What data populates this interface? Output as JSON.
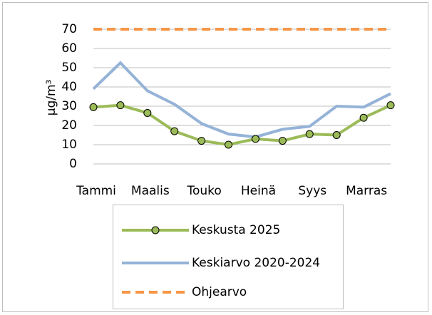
{
  "chart_data": {
    "type": "line",
    "y_label": "μg/m³",
    "categories": [
      "Tammi",
      null,
      "Maalis",
      null,
      "Touko",
      null,
      "Heinä",
      null,
      "Syys",
      null,
      "Marras",
      null
    ],
    "series": [
      {
        "name": "Keskusta 2025",
        "color": "#9bbb59",
        "marker": true,
        "dashed": false,
        "values": [
          29.5,
          30.5,
          26.5,
          17,
          12,
          10,
          13,
          12,
          15.5,
          15,
          24,
          30.5
        ]
      },
      {
        "name": "Keskiarvo 2020-2024",
        "color": "#95b3d7",
        "marker": false,
        "dashed": false,
        "values": [
          39,
          52.5,
          38,
          31,
          21,
          15.5,
          14,
          18,
          19.5,
          30,
          29.5,
          36.5
        ]
      },
      {
        "name": "Ohjearvo",
        "color": "#f79646",
        "marker": false,
        "dashed": true,
        "values": [
          70,
          70,
          70,
          70,
          70,
          70,
          70,
          70,
          70,
          70,
          70,
          70
        ]
      }
    ],
    "ylim": [
      0,
      70
    ],
    "yticks": [
      0,
      10,
      20,
      30,
      40,
      50,
      60,
      70
    ],
    "grid": true
  }
}
